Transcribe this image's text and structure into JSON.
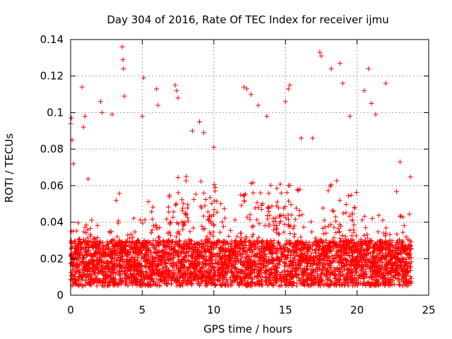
{
  "chart_data": {
    "type": "scatter",
    "title": "Day 304 of 2016, Rate Of TEC Index for receiver ijmu",
    "xlabel": "GPS time / hours",
    "ylabel": "ROTI / TECUs",
    "xlim": [
      0,
      25
    ],
    "ylim": [
      0,
      0.14
    ],
    "x_ticks": [
      0,
      5,
      10,
      15,
      20,
      25
    ],
    "x_tick_labels": [
      "0",
      "5",
      "10",
      "15",
      "20",
      "25"
    ],
    "y_ticks": [
      0,
      0.02,
      0.04,
      0.06,
      0.08,
      0.1,
      0.12,
      0.14
    ],
    "y_tick_labels": [
      "0",
      "0.02",
      "0.04",
      "0.06",
      "0.08",
      "0.1",
      "0.12",
      "0.14"
    ],
    "grid": true,
    "marker": "+",
    "color": "#ff0000",
    "series": [
      {
        "name": "ROTI",
        "x_range": [
          0,
          23.8
        ],
        "baseline_range": [
          0.005,
          0.03
        ],
        "x": [
          0.0,
          0.05,
          0.1,
          0.2,
          0.8,
          0.9,
          1.0,
          2.1,
          2.2,
          2.9,
          3.6,
          3.65,
          3.7,
          3.75,
          5.0,
          5.1,
          6.0,
          6.1,
          7.3,
          7.4,
          7.5,
          8.5,
          9.0,
          9.3,
          10.0,
          12.1,
          12.3,
          12.6,
          13.1,
          13.7,
          15.0,
          15.2,
          15.3,
          16.1,
          16.9,
          17.4,
          17.5,
          18.2,
          18.8,
          19.0,
          19.5,
          20.5,
          20.8,
          21.0,
          21.3,
          22.0,
          23.0
        ],
        "y": [
          0.094,
          0.097,
          0.085,
          0.072,
          0.114,
          0.092,
          0.098,
          0.106,
          0.1,
          0.099,
          0.136,
          0.129,
          0.124,
          0.109,
          0.098,
          0.119,
          0.113,
          0.104,
          0.115,
          0.112,
          0.108,
          0.09,
          0.095,
          0.089,
          0.081,
          0.114,
          0.113,
          0.11,
          0.104,
          0.098,
          0.106,
          0.113,
          0.115,
          0.086,
          0.086,
          0.133,
          0.131,
          0.124,
          0.127,
          0.116,
          0.098,
          0.112,
          0.124,
          0.105,
          0.099,
          0.116,
          0.073
        ]
      }
    ]
  }
}
